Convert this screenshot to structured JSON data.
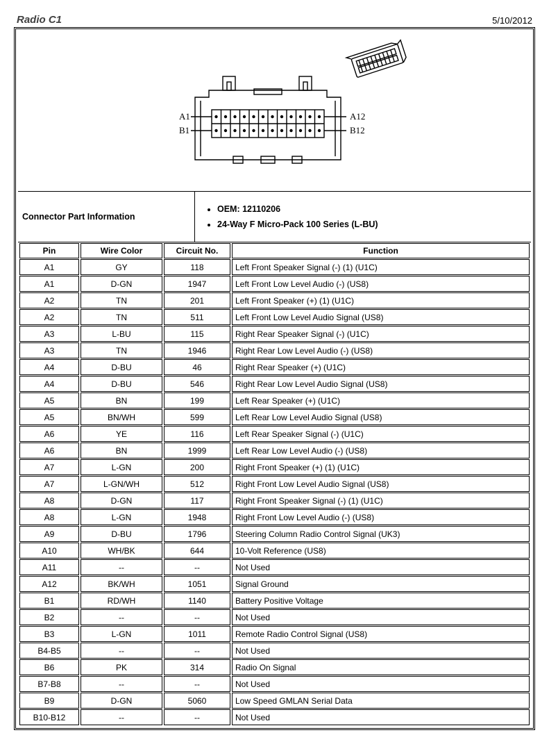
{
  "title": "Radio C1",
  "date": "5/10/2012",
  "connector_info_label": "Connector Part Information",
  "oem_label": "OEM: 12110206",
  "series_label": "24-Way F Micro-Pack 100 Series (L-BU)",
  "diagram": {
    "labels": {
      "a1": "A1",
      "a12": "A12",
      "b1": "B1",
      "b12": "B12"
    }
  },
  "columns": [
    "Pin",
    "Wire Color",
    "Circuit No.",
    "Function"
  ],
  "rows": [
    [
      "A1",
      "GY",
      "118",
      "Left Front Speaker Signal (-) (1) (U1C)"
    ],
    [
      "A1",
      "D-GN",
      "1947",
      "Left Front Low Level Audio (-) (US8)"
    ],
    [
      "A2",
      "TN",
      "201",
      "Left Front Speaker (+) (1) (U1C)"
    ],
    [
      "A2",
      "TN",
      "511",
      "Left Front Low Level Audio Signal (US8)"
    ],
    [
      "A3",
      "L-BU",
      "115",
      "Right Rear Speaker Signal (-) (U1C)"
    ],
    [
      "A3",
      "TN",
      "1946",
      "Right Rear Low Level Audio (-) (US8)"
    ],
    [
      "A4",
      "D-BU",
      "46",
      "Right Rear Speaker (+) (U1C)"
    ],
    [
      "A4",
      "D-BU",
      "546",
      "Right Rear Low Level Audio Signal (US8)"
    ],
    [
      "A5",
      "BN",
      "199",
      "Left Rear Speaker (+) (U1C)"
    ],
    [
      "A5",
      "BN/WH",
      "599",
      "Left Rear Low Level Audio Signal (US8)"
    ],
    [
      "A6",
      "YE",
      "116",
      "Left Rear Speaker Signal (-) (U1C)"
    ],
    [
      "A6",
      "BN",
      "1999",
      "Left Rear Low Level Audio (-) (US8)"
    ],
    [
      "A7",
      "L-GN",
      "200",
      "Right Front Speaker (+) (1) (U1C)"
    ],
    [
      "A7",
      "L-GN/WH",
      "512",
      "Right Front Low Level Audio Signal (US8)"
    ],
    [
      "A8",
      "D-GN",
      "117",
      "Right Front Speaker Signal (-) (1) (U1C)"
    ],
    [
      "A8",
      "L-GN",
      "1948",
      "Right Front Low Level Audio (-) (US8)"
    ],
    [
      "A9",
      "D-BU",
      "1796",
      "Steering Column Radio Control Signal (UK3)"
    ],
    [
      "A10",
      "WH/BK",
      "644",
      "10-Volt Reference (US8)"
    ],
    [
      "A11",
      "--",
      "--",
      "Not Used"
    ],
    [
      "A12",
      "BK/WH",
      "1051",
      "Signal Ground"
    ],
    [
      "B1",
      "RD/WH",
      "1140",
      "Battery Positive Voltage"
    ],
    [
      "B2",
      "--",
      "--",
      "Not Used"
    ],
    [
      "B3",
      "L-GN",
      "1011",
      "Remote Radio Control Signal (US8)"
    ],
    [
      "B4-B5",
      "--",
      "--",
      "Not Used"
    ],
    [
      "B6",
      "PK",
      "314",
      "Radio On Signal"
    ],
    [
      "B7-B8",
      "--",
      "--",
      "Not Used"
    ],
    [
      "B9",
      "D-GN",
      "5060",
      "Low Speed GMLAN Serial Data"
    ],
    [
      "B10-B12",
      "--",
      "--",
      "Not Used"
    ]
  ]
}
